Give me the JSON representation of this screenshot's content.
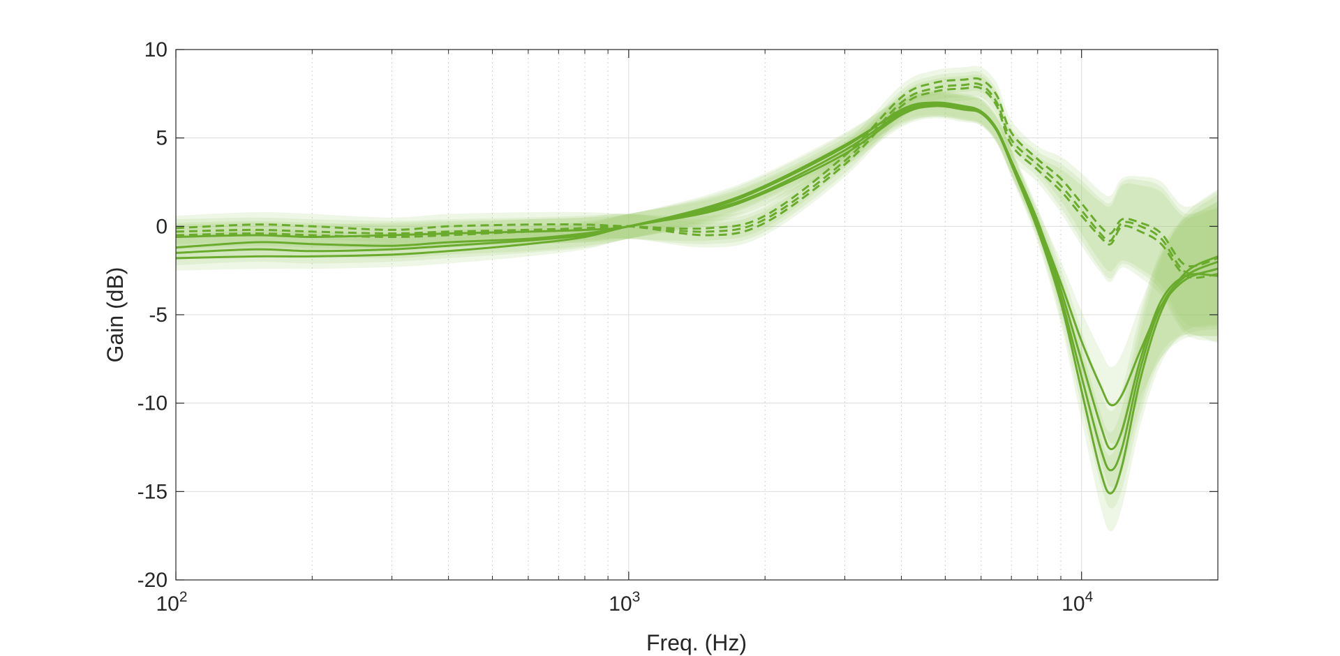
{
  "chart_data": {
    "type": "line",
    "xlabel": "Freq. (Hz)",
    "ylabel": "Gain (dB)",
    "xscale": "log",
    "xlim": [
      100,
      20000
    ],
    "ylim": [
      -20,
      10
    ],
    "grid": true,
    "legend": "none",
    "color": "#6aab2d",
    "band_color": "#9cc86a",
    "x_ticks": [
      {
        "value": 100,
        "base": "10",
        "exp": "2"
      },
      {
        "value": 1000,
        "base": "10",
        "exp": "3"
      },
      {
        "value": 10000,
        "base": "10",
        "exp": "4"
      }
    ],
    "y_ticks": [
      {
        "value": 10,
        "label": "10"
      },
      {
        "value": 5,
        "label": "5"
      },
      {
        "value": 0,
        "label": "0"
      },
      {
        "value": -5,
        "label": "-5"
      },
      {
        "value": -10,
        "label": "-10"
      },
      {
        "value": -15,
        "label": "-15"
      },
      {
        "value": -20,
        "label": "-20"
      }
    ],
    "x": [
      100,
      150,
      200,
      300,
      400,
      600,
      800,
      1000,
      1500,
      2000,
      3000,
      4000,
      4700,
      5500,
      6000,
      6500,
      7000,
      8000,
      9000,
      10000,
      11000,
      11600,
      12300,
      13500,
      15000,
      17000,
      20000
    ],
    "series": [
      {
        "style": "solid",
        "values": [
          -1.2,
          -0.9,
          -1.0,
          -1.1,
          -0.9,
          -0.7,
          -0.4,
          0.0,
          1.1,
          2.3,
          4.6,
          6.5,
          6.9,
          6.7,
          6.4,
          5.4,
          3.6,
          0.2,
          -3.2,
          -6.5,
          -9.0,
          -10.1,
          -9.5,
          -7.0,
          -4.5,
          -3.0,
          -2.4
        ]
      },
      {
        "style": "solid",
        "values": [
          -1.5,
          -1.3,
          -1.4,
          -1.3,
          -1.1,
          -0.8,
          -0.5,
          0.0,
          0.9,
          2.0,
          4.3,
          6.4,
          6.9,
          6.7,
          6.5,
          5.5,
          3.6,
          0.0,
          -4.0,
          -8.5,
          -12.5,
          -13.8,
          -12.5,
          -8.0,
          -4.5,
          -2.8,
          -2.0
        ]
      },
      {
        "style": "solid",
        "values": [
          -1.8,
          -1.7,
          -1.7,
          -1.6,
          -1.4,
          -1.0,
          -0.6,
          0.0,
          0.8,
          1.9,
          4.1,
          6.3,
          6.8,
          6.6,
          6.4,
          5.4,
          3.5,
          -0.2,
          -4.3,
          -9.3,
          -13.8,
          -15.1,
          -13.5,
          -8.6,
          -4.8,
          -2.6,
          -1.7
        ]
      },
      {
        "style": "solid",
        "values": [
          -0.6,
          -0.5,
          -0.6,
          -0.5,
          -0.4,
          -0.3,
          -0.2,
          0.0,
          1.0,
          2.2,
          4.5,
          6.6,
          7.0,
          6.8,
          6.5,
          5.5,
          3.7,
          0.3,
          -3.6,
          -7.6,
          -11.2,
          -12.6,
          -11.5,
          -7.5,
          -4.2,
          -2.8,
          -2.8
        ]
      },
      {
        "style": "dashed",
        "values": [
          -0.1,
          0.1,
          0.0,
          -0.2,
          0.0,
          0.1,
          0.1,
          0.0,
          -0.1,
          0.6,
          4.0,
          7.3,
          8.1,
          8.3,
          8.3,
          7.4,
          5.3,
          3.8,
          2.7,
          1.3,
          0.0,
          -0.4,
          0.4,
          0.2,
          -0.4,
          -2.2,
          -1.8
        ]
      },
      {
        "style": "dashed",
        "values": [
          -0.3,
          -0.2,
          -0.3,
          -0.4,
          -0.3,
          -0.2,
          -0.1,
          0.0,
          -0.3,
          0.4,
          3.7,
          7.0,
          7.8,
          8.0,
          8.0,
          7.0,
          4.9,
          3.5,
          2.3,
          0.9,
          -0.4,
          -0.8,
          0.2,
          0.0,
          -0.7,
          -2.6,
          -2.4
        ]
      },
      {
        "style": "dashed",
        "values": [
          -0.5,
          -0.4,
          -0.5,
          -0.6,
          -0.5,
          -0.3,
          -0.2,
          0.0,
          -0.5,
          0.2,
          3.5,
          6.8,
          7.6,
          7.8,
          7.8,
          6.8,
          4.6,
          3.2,
          2.0,
          0.6,
          -0.6,
          -1.0,
          0.0,
          -0.3,
          -1.0,
          -2.8,
          -2.7
        ]
      }
    ]
  }
}
